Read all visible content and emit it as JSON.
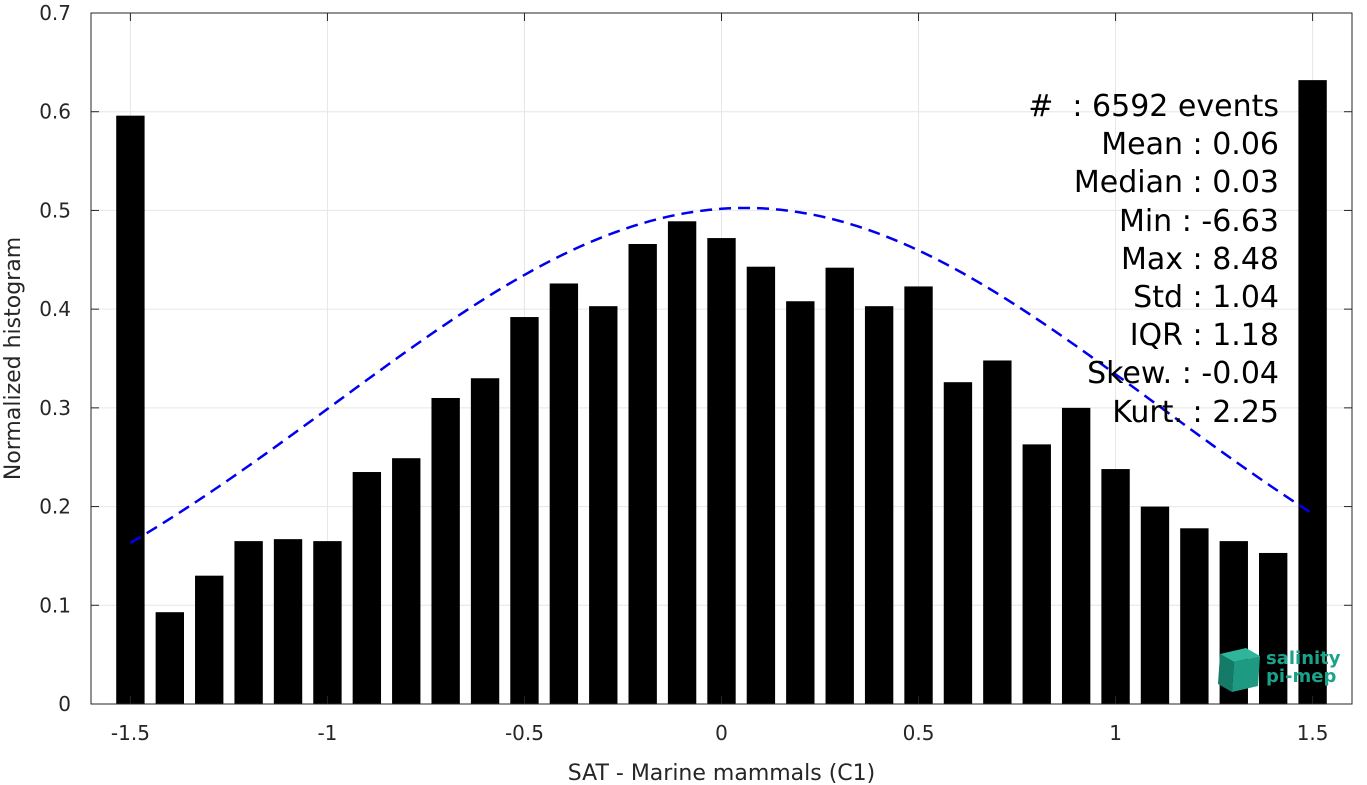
{
  "chart_data": {
    "type": "bar",
    "xlabel": "SAT - Marine mammals (C1)",
    "ylabel": "Normalized histogram",
    "xlim": [
      -1.6,
      1.6
    ],
    "ylim": [
      0,
      0.7
    ],
    "xticks": [
      "-1.5",
      "-1",
      "-0.5",
      "0",
      "0.5",
      "1",
      "1.5"
    ],
    "yticks": [
      "0",
      "0.1",
      "0.2",
      "0.3",
      "0.4",
      "0.5",
      "0.6",
      "0.7"
    ],
    "grid": true,
    "bin_width": 0.1,
    "bin_centers": [
      -1.5,
      -1.4,
      -1.3,
      -1.2,
      -1.1,
      -1.0,
      -0.9,
      -0.8,
      -0.7,
      -0.6,
      -0.5,
      -0.4,
      -0.3,
      -0.2,
      -0.1,
      0.0,
      0.1,
      0.2,
      0.3,
      0.4,
      0.5,
      0.6,
      0.7,
      0.8,
      0.9,
      1.0,
      1.1,
      1.2,
      1.3,
      1.4,
      1.5
    ],
    "values": [
      0.596,
      0.093,
      0.13,
      0.165,
      0.167,
      0.165,
      0.235,
      0.249,
      0.31,
      0.33,
      0.392,
      0.426,
      0.403,
      0.466,
      0.489,
      0.472,
      0.443,
      0.408,
      0.442,
      0.403,
      0.423,
      0.326,
      0.348,
      0.263,
      0.3,
      0.238,
      0.2,
      0.178,
      0.165,
      0.153,
      0.632
    ],
    "bar_color": "#000000",
    "fit_curve": {
      "style": "dashed",
      "color": "#0000ee",
      "mean": 0.06,
      "std": 1.04,
      "x_range": [
        -1.5,
        1.5
      ]
    },
    "stats_lines": [
      "#  : 6592 events",
      "Mean : 0.06",
      "Median : 0.03",
      "Min : -6.63",
      "Max : 8.48",
      "Std : 1.04",
      "IQR : 1.18",
      "Skew. : -0.04",
      "Kurt. : 2.25"
    ]
  },
  "logo": {
    "line1": "salinity",
    "line2": "pi-mep",
    "color": "#1aa38a"
  }
}
